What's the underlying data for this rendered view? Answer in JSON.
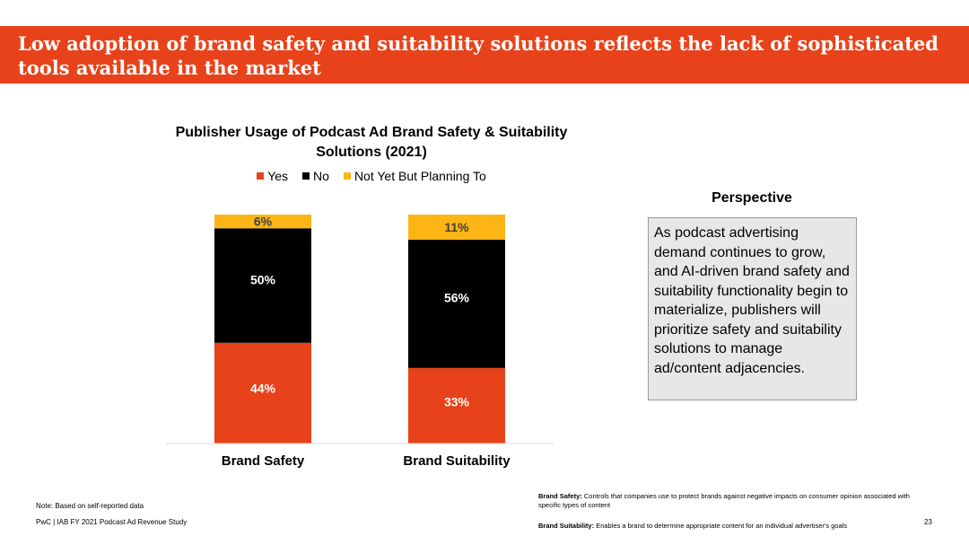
{
  "header": {
    "title": "Low adoption of brand safety and suitability solutions reflects the lack of sophisticated tools available in the market"
  },
  "chart_data": {
    "type": "bar",
    "stacked": true,
    "title": "Publisher Usage of Podcast Ad Brand Safety & Suitability Solutions (2021)",
    "categories": [
      "Brand Safety",
      "Brand Suitability"
    ],
    "series": [
      {
        "name": "Yes",
        "values": [
          44,
          33
        ],
        "labels": [
          "44%",
          "33%"
        ],
        "color": "#e8421a",
        "label_color": "#ffffff"
      },
      {
        "name": "No",
        "values": [
          50,
          56
        ],
        "labels": [
          "50%",
          "56%"
        ],
        "color": "#000000",
        "label_color": "#ffffff"
      },
      {
        "name": "Not Yet But Planning To",
        "values": [
          6,
          11
        ],
        "labels": [
          "6%",
          "11%"
        ],
        "color": "#fdb515",
        "label_color": "#404040"
      }
    ],
    "legend": "top",
    "grid": false,
    "ylim": [
      0,
      100
    ]
  },
  "perspective": {
    "title": "Perspective",
    "text": "As podcast advertising demand continues to grow, and AI-driven brand safety and suitability functionality begin to materialize, publishers will prioritize safety and suitability solutions to manage ad/content adjacencies."
  },
  "footer": {
    "note": "Note: Based on self-reported data",
    "source": "PwC  |  IAB FY 2021 Podcast Ad Revenue Study",
    "brand_safety_term": "Brand Safety:",
    "brand_safety_def": "Controls that companies use to protect brands against negative impacts on consumer opinion associated with specific types of content",
    "brand_suitability_term": "Brand Suitability:",
    "brand_suitability_def": "Enables a brand to determine appropriate content for an individual advertiser's goals",
    "page_number": "23"
  }
}
